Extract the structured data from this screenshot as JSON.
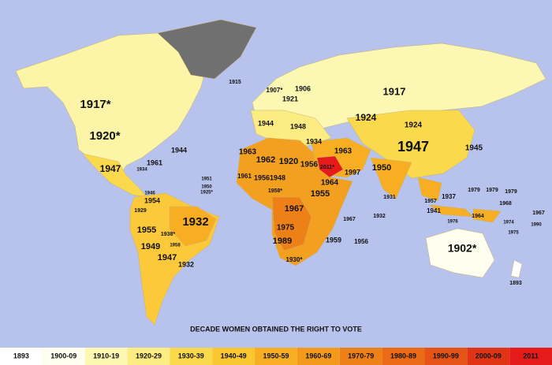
{
  "map": {
    "labels": [
      "1915",
      "1917*",
      "1920*",
      "1944",
      "1961",
      "1947",
      "1934",
      "1932",
      "1954",
      "1929",
      "1955",
      "1938*",
      "1949",
      "1947",
      "1932",
      "1958",
      "1917",
      "1906",
      "1907*",
      "1921",
      "1924",
      "1924",
      "1947",
      "1945",
      "1963",
      "1962",
      "1920",
      "1956",
      "2011*",
      "1997",
      "1950",
      "1963",
      "1934",
      "1944",
      "1948",
      "1964",
      "1955",
      "1967",
      "1975",
      "1989",
      "1959",
      "1956",
      "1967",
      "1932",
      "1931",
      "1937",
      "1957",
      "1941",
      "1964",
      "1979",
      "1979",
      "1979",
      "1968",
      "1974",
      "1975",
      "1990",
      "1967",
      "1976",
      "1902*",
      "1893",
      "1930*",
      "1961",
      "1956",
      "1948",
      "1958*",
      "1946",
      "1951",
      "1950",
      "1925*"
    ]
  },
  "legend": {
    "title": "DECADE WOMEN OBTAINED THE RIGHT TO VOTE",
    "items": [
      {
        "label": "1893",
        "color": "#ffffff"
      },
      {
        "label": "1900-09",
        "color": "#fffff0"
      },
      {
        "label": "1910-19",
        "color": "#fcf8b4"
      },
      {
        "label": "1920-29",
        "color": "#fcec82"
      },
      {
        "label": "1930-39",
        "color": "#fbd94c"
      },
      {
        "label": "1940-49",
        "color": "#fac632"
      },
      {
        "label": "1950-59",
        "color": "#f7ae22"
      },
      {
        "label": "1960-69",
        "color": "#f39a1c"
      },
      {
        "label": "1970-79",
        "color": "#ee8018"
      },
      {
        "label": "1980-89",
        "color": "#ea6a16"
      },
      {
        "label": "1990-99",
        "color": "#e55416"
      },
      {
        "label": "2000-09",
        "color": "#e03415"
      },
      {
        "label": "2011",
        "color": "#e51a1a"
      }
    ]
  }
}
